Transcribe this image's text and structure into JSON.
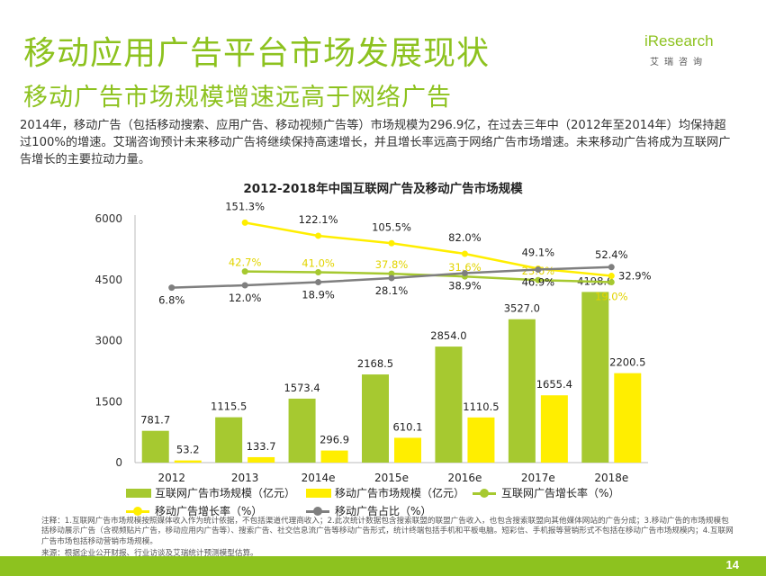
{
  "header": {
    "title": "移动应用广告平台市场发展现状",
    "subtitle": "移动广告市场规模增速远高于网络广告",
    "logo_brand": "iResearch",
    "logo_cn": "艾瑞咨询"
  },
  "paragraph": "2014年，移动广告（包括移动搜索、应用广告、移动视频广告等）市场规模为296.9亿，在过去三年中（2012年至2014年）均保持超过100%的增速。艾瑞咨询预计未来移动广告将继续保持高速增长，并且增长率远高于网络广告市场增速。未来移动广告将成为互联网广告增长的主要拉动力量。",
  "chart_data": {
    "type": "bar",
    "title": "2012-2018年中国互联网广告及移动广告市场规模",
    "categories": [
      "2012",
      "2013",
      "2014e",
      "2015e",
      "2016e",
      "2017e",
      "2018e"
    ],
    "ylim": [
      0,
      6000
    ],
    "yticks": [
      "0",
      "1500",
      "3000",
      "4500",
      "6000"
    ],
    "series": [
      {
        "name": "互联网广告市场规模（亿元）",
        "kind": "bar",
        "color": "#a6c930",
        "values": [
          781.7,
          1115.5,
          1573.4,
          2168.5,
          2854.0,
          3527.0,
          4198.0
        ],
        "labels": [
          "781.7",
          "1115.5",
          "1573.4",
          "2168.5",
          "2854.0",
          "3527.0",
          "4198.0"
        ]
      },
      {
        "name": "移动广告市场规模（亿元）",
        "kind": "bar",
        "color": "#ffee00",
        "values": [
          53.2,
          133.7,
          296.9,
          610.1,
          1110.5,
          1655.4,
          2200.5
        ],
        "labels": [
          "53.2",
          "133.7",
          "296.9",
          "610.1",
          "1110.5",
          "1655.4",
          "2200.5"
        ]
      },
      {
        "name": "互联网广告增长率（%）",
        "kind": "line",
        "color": "#a6c930",
        "values": [
          null,
          42.7,
          41.0,
          37.8,
          31.6,
          23.6,
          19.0
        ],
        "labels": [
          "",
          "42.7%",
          "41.0%",
          "37.8%",
          "31.6%",
          "23.6%",
          "19.0%"
        ]
      },
      {
        "name": "移动广告增长率（%）",
        "kind": "line",
        "color": "#ffee00",
        "values": [
          null,
          151.3,
          122.1,
          105.5,
          82.0,
          49.1,
          32.9
        ],
        "labels": [
          "",
          "151.3%",
          "122.1%",
          "105.5%",
          "82.0%",
          "49.1%",
          "32.9%"
        ]
      },
      {
        "name": "移动广告占比（%）",
        "kind": "line",
        "color": "#7f7f7f",
        "values": [
          6.8,
          12.0,
          18.9,
          28.1,
          38.9,
          46.9,
          52.4
        ],
        "labels": [
          "6.8%",
          "12.0%",
          "18.9%",
          "28.1%",
          "38.9%",
          "46.9%",
          "52.4%"
        ]
      }
    ]
  },
  "note": "注释：1.互联网广告市场规模按照媒体收入作为统计依据，不包括渠道代理商收入；2.此次统计数据包含搜索联盟的联盟广告收入，也包含搜索联盟向其他媒体网站的广告分成；3.移动广告的市场规模包括移动展示广告（含视频贴片广告，移动应用内广告等）、搜索广告、社交信息流广告等移动广告形式，统计终端包括手机和平板电脑。短彩信、手机报等营销形式不包括在移动广告市场规模内；4.互联网广告市场包括移动营销市场规模。",
  "source": "来源：根据企业公开财报、行业访谈及艾瑞统计预测模型估算。",
  "page_number": "14"
}
